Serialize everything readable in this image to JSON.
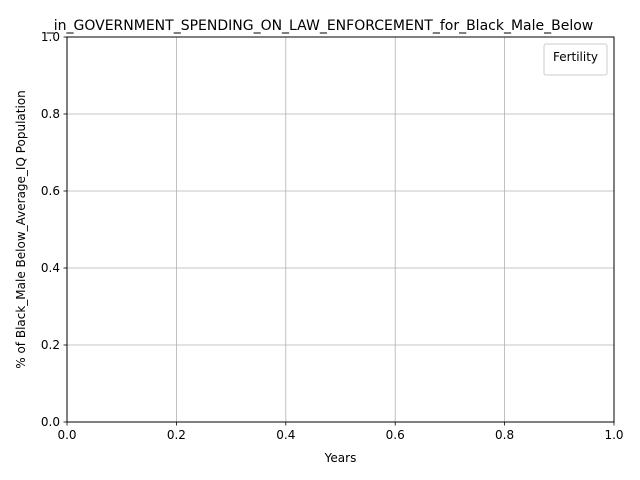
{
  "chart_data": {
    "type": "line",
    "title": "_in_GOVERNMENT_SPENDING_ON_LAW_ENFORCEMENT_for_Black_Male_Below",
    "xlabel": "Years",
    "ylabel": "% of Black_Male Below_Average_IQ Population",
    "xlim": [
      0.0,
      1.0
    ],
    "ylim": [
      0.0,
      1.0
    ],
    "xticks": [
      0.0,
      0.2,
      0.4,
      0.6,
      0.8,
      1.0
    ],
    "xtick_labels": [
      "0.0",
      "0.2",
      "0.4",
      "0.6",
      "0.8",
      "1.0"
    ],
    "yticks": [
      0.0,
      0.2,
      0.4,
      0.6,
      0.8,
      1.0
    ],
    "ytick_labels": [
      "0.0",
      "0.2",
      "0.4",
      "0.6",
      "0.8",
      "1.0"
    ],
    "grid": true,
    "legend": {
      "title": "Fertility",
      "placement": "top-right",
      "entries": []
    },
    "series": []
  }
}
